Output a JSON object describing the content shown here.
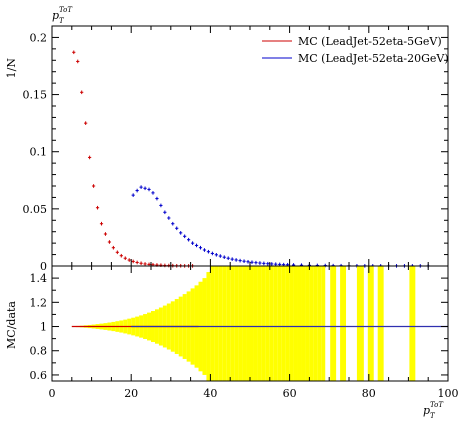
{
  "chart_data": [
    {
      "type": "scatter",
      "panel": "main",
      "title": "",
      "ylabel": "1/N",
      "top_label": {
        "main": "p",
        "sub": "T",
        "sup": "ToT"
      },
      "xlim": [
        0,
        100
      ],
      "ylim": [
        0,
        0.21
      ],
      "yticks": [
        0,
        0.05,
        0.1,
        0.15,
        0.2
      ],
      "ytick_labels": [
        "0",
        "0.05",
        "0.1",
        "0.15",
        "0.2"
      ],
      "legend_position": "top-right",
      "series": [
        {
          "name": "MC (LeadJet-52eta-5GeV)",
          "color": "#cc0000",
          "x": [
            5.5,
            6.5,
            7.5,
            8.5,
            9.5,
            10.5,
            11.5,
            12.5,
            13.5,
            14.5,
            15.5,
            16.5,
            17.5,
            18.5,
            19.5,
            20.5,
            21.5,
            22.5,
            23.5,
            24.5,
            25.5,
            26.5,
            27.5,
            28.5,
            29.5,
            30.5,
            31.5,
            32.5,
            33.5,
            34.5,
            35.5
          ],
          "y": [
            0.187,
            0.179,
            0.152,
            0.125,
            0.095,
            0.07,
            0.051,
            0.037,
            0.028,
            0.021,
            0.016,
            0.012,
            0.009,
            0.0068,
            0.0052,
            0.004,
            0.0031,
            0.0024,
            0.0018,
            0.0014,
            0.0011,
            0.0009,
            0.0007,
            0.0005,
            0.0004,
            0.0003,
            0.0002,
            0.0002,
            0.0001,
            0.0001,
            0.0001
          ]
        },
        {
          "name": "MC (LeadJet-52eta-20GeV)",
          "color": "#0000cc",
          "x": [
            20.5,
            21.5,
            22.5,
            23.5,
            24.5,
            25.5,
            26.5,
            27.5,
            28.5,
            29.5,
            30.5,
            31.5,
            32.5,
            33.5,
            34.5,
            35.5,
            36.5,
            37.5,
            38.5,
            39.5,
            40.5,
            41.5,
            42.5,
            43.5,
            44.5,
            45.5,
            46.5,
            47.5,
            48.5,
            49.5,
            50.5,
            51.5,
            52.5,
            53.5,
            54.5,
            55.5,
            56.5,
            57.5,
            58.5,
            59.5,
            61,
            63,
            65,
            67,
            69,
            71,
            73,
            75,
            77,
            79,
            81,
            83,
            85,
            87,
            89,
            91,
            93,
            95
          ],
          "y": [
            0.062,
            0.066,
            0.069,
            0.068,
            0.067,
            0.064,
            0.059,
            0.053,
            0.047,
            0.042,
            0.037,
            0.033,
            0.029,
            0.026,
            0.023,
            0.02,
            0.018,
            0.016,
            0.014,
            0.0125,
            0.011,
            0.0098,
            0.0087,
            0.0077,
            0.0068,
            0.006,
            0.0053,
            0.0047,
            0.0042,
            0.0037,
            0.0033,
            0.0029,
            0.0026,
            0.0023,
            0.002,
            0.0018,
            0.0016,
            0.0014,
            0.0012,
            0.0011,
            0.0009,
            0.0007,
            0.0006,
            0.0005,
            0.0004,
            0.0003,
            0.00025,
            0.0002,
            0.00015,
            0.00012,
            0.0001,
            0.0001,
            0.0001,
            0.0001,
            0.0001,
            0.0001,
            0.0001,
            0.0001
          ]
        }
      ]
    },
    {
      "type": "bar",
      "panel": "ratio",
      "ylabel": "MC/data",
      "xlabel": {
        "main": "p",
        "sub": "T",
        "sup": "ToT"
      },
      "xlim": [
        0,
        100
      ],
      "ylim": [
        0.55,
        1.5
      ],
      "xticks": [
        0,
        20,
        40,
        60,
        80,
        100
      ],
      "xtick_labels": [
        "0",
        "20",
        "40",
        "60",
        "80",
        "100"
      ],
      "yticks": [
        0.6,
        0.8,
        1,
        1.2,
        1.4
      ],
      "ytick_labels": [
        "0.6",
        "0.8",
        "1",
        "1.2",
        "1.4"
      ],
      "band_color": "#ffff00",
      "band_centers": [
        5.5,
        6.5,
        7.5,
        8.5,
        9.5,
        10.5,
        11.5,
        12.5,
        13.5,
        14.5,
        15.5,
        16.5,
        17.5,
        18.5,
        19.5,
        20.5,
        21.5,
        22.5,
        23.5,
        24.5,
        25.5,
        26.5,
        27.5,
        28.5,
        29.5,
        30.5,
        31.5,
        32.5,
        33.5,
        34.5,
        35.5,
        36.5,
        37.5,
        38.5,
        39.5,
        40.5,
        41.5,
        42.5,
        43.5,
        44.5,
        45.5,
        46.5,
        47.5,
        48.5,
        49.5,
        50.5,
        51.5,
        52.5,
        53.5,
        54.5,
        55.5,
        56.5,
        57.5,
        58.5,
        59.5,
        60.5,
        61.5,
        62.5,
        63.5,
        64.5,
        65.5,
        66.5,
        67.5,
        68.5,
        71,
        73.5,
        77.5,
        78,
        80.5,
        83,
        91
      ],
      "band_halfwidths": [
        0.003,
        0.005,
        0.007,
        0.01,
        0.013,
        0.016,
        0.02,
        0.024,
        0.028,
        0.033,
        0.038,
        0.044,
        0.05,
        0.057,
        0.065,
        0.073,
        0.082,
        0.092,
        0.103,
        0.115,
        0.128,
        0.142,
        0.157,
        0.173,
        0.19,
        0.208,
        0.227,
        0.247,
        0.268,
        0.29,
        0.315,
        0.34,
        0.37,
        0.4,
        0.45,
        0.5,
        0.5,
        0.5,
        0.5,
        0.5,
        0.5,
        0.5,
        0.5,
        0.5,
        0.5,
        0.5,
        0.5,
        0.5,
        0.5,
        0.5,
        0.5,
        0.5,
        0.5,
        0.5,
        0.5,
        0.5,
        0.5,
        0.5,
        0.5,
        0.5,
        0.5,
        0.5,
        0.5,
        0.5,
        0.5,
        0.5,
        0.5,
        0.5,
        0.5,
        0.5,
        0.5
      ],
      "band_widths": [
        1,
        1,
        1,
        1,
        1,
        1,
        1,
        1,
        1,
        1,
        1,
        1,
        1,
        1,
        1,
        1,
        1,
        1,
        1,
        1,
        1,
        1,
        1,
        1,
        1,
        1,
        1,
        1,
        1,
        1,
        1,
        1,
        1,
        1,
        1,
        1,
        1,
        1,
        1,
        1,
        1,
        1,
        1,
        1,
        1,
        1,
        1,
        1,
        1,
        1,
        1,
        1,
        1,
        1,
        1,
        1,
        1,
        1,
        1,
        1,
        1,
        1,
        1,
        1,
        1.5,
        1.5,
        1,
        1.5,
        1.5,
        1.5,
        1.5
      ],
      "red_ratio": 1,
      "blue_ratio": 1
    }
  ]
}
